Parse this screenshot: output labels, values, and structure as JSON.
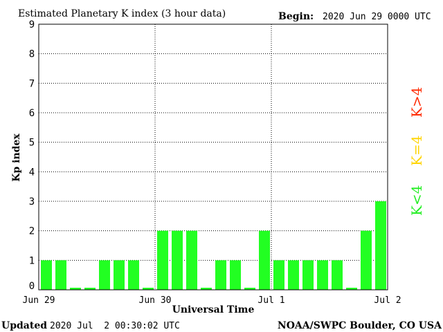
{
  "header": {
    "title": "Estimated Planetary K index (3 hour data)",
    "begin_label": "Begin:",
    "begin_value": "2020 Jun 29 0000 UTC"
  },
  "footer": {
    "updated_label": "Updated",
    "updated_value": "2020 Jul  2 00:30:02 UTC",
    "source": "NOAA/SWPC Boulder, CO USA"
  },
  "legend": {
    "high": {
      "label": "K>4",
      "color": "#ff2a00"
    },
    "mid": {
      "label": "K=4",
      "color": "#ffd400"
    },
    "low": {
      "label": "K<4",
      "color": "#22ee22"
    }
  },
  "colors": {
    "bar": "#22ff22",
    "grid": "#000000"
  },
  "chart_data": {
    "type": "bar",
    "title": "Estimated Planetary K index (3 hour data)",
    "xlabel": "Universal Time",
    "ylabel": "Kp index",
    "ylim": [
      0,
      9
    ],
    "yticks": [
      "0",
      "1",
      "2",
      "3",
      "4",
      "5",
      "6",
      "7",
      "8",
      "9"
    ],
    "xticks": [
      "Jun 29",
      "Jun 30",
      "Jul 1",
      "Jul 2"
    ],
    "grid": true,
    "legend_position": "right",
    "categories": [
      "Jun 29 00",
      "Jun 29 03",
      "Jun 29 06",
      "Jun 29 09",
      "Jun 29 12",
      "Jun 29 15",
      "Jun 29 18",
      "Jun 29 21",
      "Jun 30 00",
      "Jun 30 03",
      "Jun 30 06",
      "Jun 30 09",
      "Jun 30 12",
      "Jun 30 15",
      "Jun 30 18",
      "Jun 30 21",
      "Jul 1 00",
      "Jul 1 03",
      "Jul 1 06",
      "Jul 1 09",
      "Jul 1 12",
      "Jul 1 15",
      "Jul 1 18",
      "Jul 1 21"
    ],
    "values": [
      1,
      1,
      0,
      0,
      1,
      1,
      1,
      0,
      2,
      2,
      2,
      0,
      1,
      1,
      0,
      2,
      1,
      1,
      1,
      1,
      1,
      0,
      2,
      3
    ]
  }
}
